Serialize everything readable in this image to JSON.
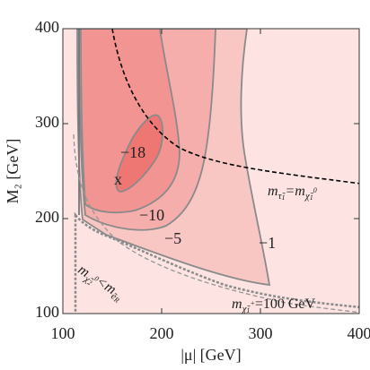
{
  "chart_data": {
    "type": "contour",
    "x_label": "|μ| [GeV]",
    "y_label": "M₂ [GeV]",
    "xlim": [
      100,
      400
    ],
    "xticks": [
      100,
      200,
      300,
      400
    ],
    "ylim": [
      100,
      400
    ],
    "yticks": [
      100,
      200,
      300,
      400
    ],
    "background_color": "#fde4e3",
    "contours": [
      {
        "level": -1,
        "label": "−1",
        "color": "#f8c7c4"
      },
      {
        "level": -5,
        "label": "−5",
        "color": "#f5aeab"
      },
      {
        "level": -10,
        "label": "−10",
        "color": "#f29491"
      },
      {
        "level": -18,
        "label": "−18",
        "color": "#ee7774"
      }
    ],
    "marker": "x",
    "annotations": {
      "stau": [
        "m",
        "τ̃",
        "1",
        "=m",
        "χ̃",
        "1",
        "0"
      ],
      "neutralino": [
        "m",
        "χ̃",
        "2",
        "0",
        "<m",
        "ẽ",
        "R"
      ],
      "chargino": [
        "m",
        "χ̃",
        "1",
        "+",
        "=100 GeV"
      ]
    }
  }
}
